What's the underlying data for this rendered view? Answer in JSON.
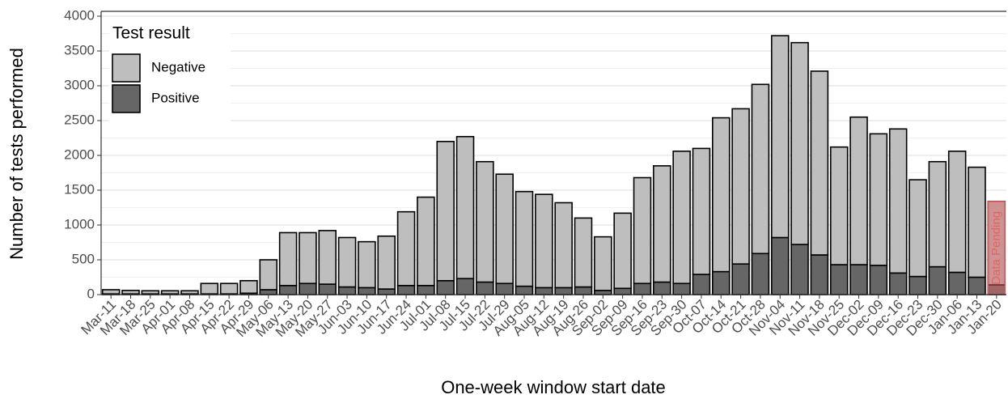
{
  "chart_data": {
    "type": "stacked_bar",
    "x_label": "One-week window start date",
    "y_label": "Number of tests performed",
    "legend_title": "Test result",
    "categories": [
      "Mar-11",
      "Mar-18",
      "Mar-25",
      "Apr-01",
      "Apr-08",
      "Apr-15",
      "Apr-22",
      "Apr-29",
      "May-06",
      "May-13",
      "May-20",
      "May-27",
      "Jun-03",
      "Jun-10",
      "Jun-17",
      "Jun-24",
      "Jul-01",
      "Jul-08",
      "Jul-15",
      "Jul-22",
      "Jul-29",
      "Aug-05",
      "Aug-12",
      "Aug-19",
      "Aug-26",
      "Sep-02",
      "Sep-09",
      "Sep-16",
      "Sep-23",
      "Sep-30",
      "Oct-07",
      "Oct-14",
      "Oct-21",
      "Oct-28",
      "Nov-04",
      "Nov-11",
      "Nov-18",
      "Nov-25",
      "Dec-02",
      "Dec-09",
      "Dec-16",
      "Dec-23",
      "Dec-30",
      "Jan-06",
      "Jan-13",
      "Jan-20"
    ],
    "series": [
      {
        "name": "Positive",
        "color": "#666666",
        "values": [
          10,
          10,
          10,
          10,
          10,
          10,
          10,
          20,
          70,
          130,
          160,
          150,
          110,
          100,
          80,
          130,
          130,
          200,
          230,
          180,
          160,
          120,
          100,
          100,
          110,
          60,
          90,
          160,
          180,
          160,
          290,
          330,
          440,
          590,
          820,
          720,
          570,
          430,
          430,
          420,
          310,
          260,
          400,
          320,
          250,
          140
        ]
      },
      {
        "name": "Negative",
        "color": "#bebebe",
        "values": [
          60,
          50,
          45,
          45,
          45,
          150,
          150,
          180,
          430,
          760,
          730,
          770,
          710,
          660,
          760,
          1060,
          1270,
          2000,
          2040,
          1730,
          1570,
          1360,
          1340,
          1220,
          990,
          770,
          1080,
          1520,
          1670,
          1900,
          1810,
          2210,
          2230,
          2430,
          2900,
          2900,
          2640,
          1690,
          2120,
          1890,
          2070,
          1390,
          1510,
          1740,
          1580,
          1200
        ]
      }
    ],
    "annotation": {
      "text": "Data Pending",
      "category": "Jan-20",
      "color": "#e06666"
    },
    "ylim": [
      0,
      4000
    ],
    "yticks": [
      0,
      500,
      1000,
      1500,
      2000,
      2500,
      3000,
      3500,
      4000
    ],
    "grid": true,
    "legend_position": "top-left"
  }
}
